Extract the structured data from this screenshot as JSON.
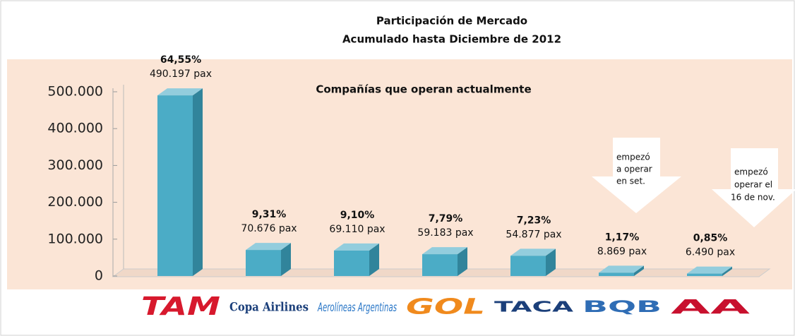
{
  "chart_data": {
    "type": "bar3d",
    "title": [
      "Participación de Mercado",
      "Acumulado  hasta Diciembre de 2012"
    ],
    "categories": [
      "TAM",
      "Copa Airlines",
      "Aerolíneas Argentinas",
      "GOL",
      "TACA",
      "BQB",
      "AA"
    ],
    "values": [
      490197,
      70676,
      69110,
      59183,
      54877,
      8869,
      6490
    ],
    "value_labels": [
      "490.197 pax",
      "70.676 pax",
      "69.110 pax",
      "59.183 pax",
      "54.877 pax",
      "8.869 pax",
      "6.490 pax"
    ],
    "shares": [
      64.55,
      9.31,
      9.1,
      7.79,
      7.23,
      1.17,
      0.85
    ],
    "share_labels": [
      "64,55%",
      "9,31%",
      "9,10%",
      "7,79%",
      "7,23%",
      "1,17%",
      "0,85%"
    ],
    "color": "#4bacc6",
    "ylim": [
      0,
      500000
    ],
    "yticks": [
      0,
      {
        "value": 100000,
        "label": "100.000"
      },
      {
        "value": 200000,
        "label": "200.000"
      },
      {
        "value": 300000,
        "label": "300.000"
      },
      {
        "value": 400000,
        "label": "400.000"
      },
      {
        "value": 500000,
        "label": "500.000"
      }
    ],
    "annotations": [
      "Compañías que operan actualmente",
      [
        "empezó",
        "a operar",
        "en set."
      ],
      [
        "empezó",
        "operar el",
        "16 de nov."
      ]
    ]
  }
}
